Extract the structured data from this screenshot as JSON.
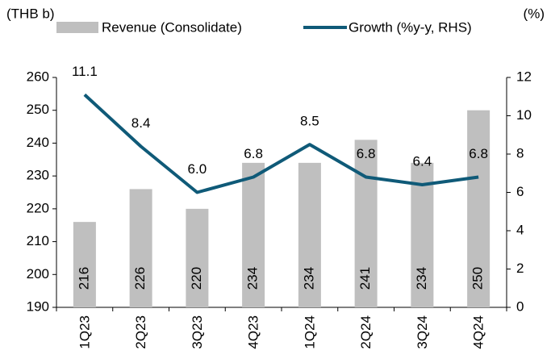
{
  "chart_data": {
    "type": "bar_line",
    "y_unit_label": "(THB b)",
    "y2_unit_label": "(%)",
    "categories": [
      "1Q23",
      "2Q23",
      "3Q23",
      "4Q23",
      "1Q24",
      "2Q24",
      "3Q24",
      "4Q24"
    ],
    "series": [
      {
        "name": "Revenue (Consolidate)",
        "type": "bar",
        "color": "#bfbfbf",
        "values": [
          216,
          226,
          220,
          234,
          234,
          241,
          234,
          250
        ]
      },
      {
        "name": "Growth (%y-y, RHS)",
        "type": "line",
        "axis": "y2",
        "color": "#0f5a78",
        "values": [
          11.1,
          8.4,
          6.0,
          6.8,
          8.5,
          6.8,
          6.4,
          6.8
        ],
        "value_labels": [
          "11.1",
          "8.4",
          "6.0",
          "6.8",
          "8.5",
          "6.8",
          "6.4",
          "6.8"
        ]
      }
    ],
    "ylim": [
      190,
      260
    ],
    "yticks": [
      190,
      200,
      210,
      220,
      230,
      240,
      250,
      260
    ],
    "y2lim": [
      0,
      12
    ],
    "y2ticks": [
      0,
      2,
      4,
      6,
      8,
      10,
      12
    ],
    "legend": "top"
  }
}
